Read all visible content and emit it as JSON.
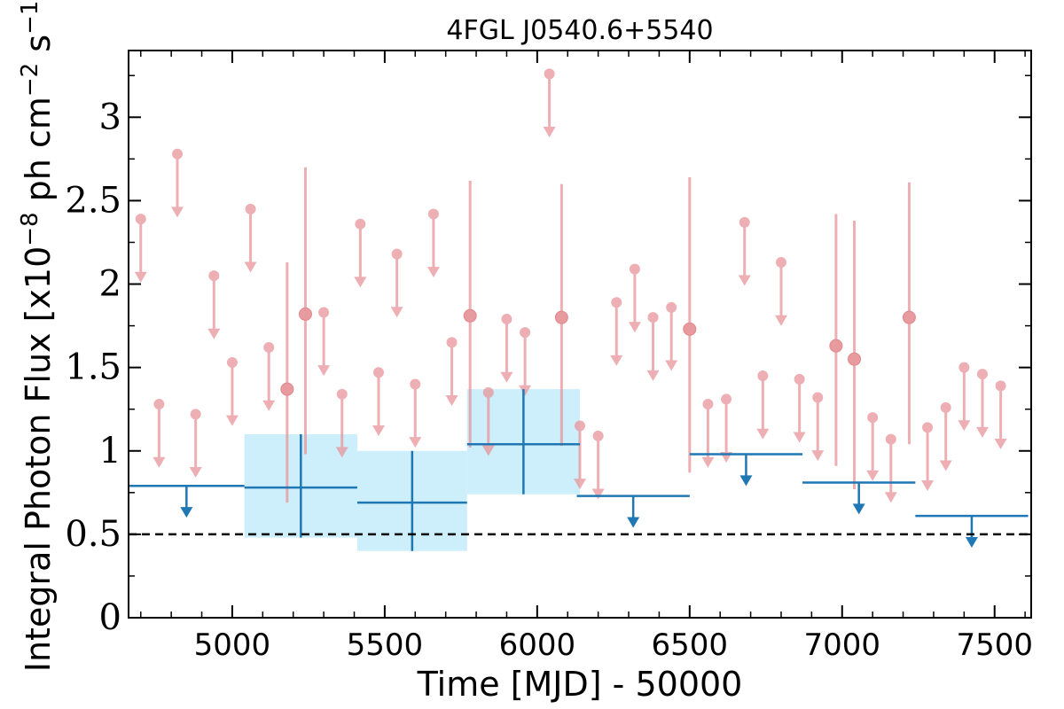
{
  "chart_data": {
    "type": "scatter",
    "title": "4FGL J0540.6+5540",
    "xlabel": "Time [MJD] - 50000",
    "ylabel": "Integral Photon Flux [x10^-8 ph cm^-2 s^-1]",
    "xlim": [
      4660,
      7620
    ],
    "ylim": [
      0,
      3.4
    ],
    "x_ticks": [
      5000,
      5500,
      6000,
      6500,
      7000,
      7500
    ],
    "x_tick_labels": [
      "5000",
      "5500",
      "6000",
      "6500",
      "7000",
      "7500"
    ],
    "y_ticks": [
      0,
      0.5,
      1,
      1.5,
      2,
      2.5,
      3
    ],
    "y_tick_labels": [
      "0",
      "0.5",
      "1",
      "1.5",
      "2",
      "2.5",
      "3"
    ],
    "reference_line": {
      "y": 0.5,
      "style": "dashed"
    },
    "grid": false,
    "series": [
      {
        "kind": "short-bin",
        "color": "#e8959a",
        "upper_limits": [
          {
            "x": 4700,
            "y": 2.39
          },
          {
            "x": 4760,
            "y": 1.28
          },
          {
            "x": 4820,
            "y": 2.78
          },
          {
            "x": 4880,
            "y": 1.22
          },
          {
            "x": 4940,
            "y": 2.05
          },
          {
            "x": 5000,
            "y": 1.53
          },
          {
            "x": 5060,
            "y": 2.45
          },
          {
            "x": 5120,
            "y": 1.62
          },
          {
            "x": 5300,
            "y": 1.83
          },
          {
            "x": 5360,
            "y": 1.34
          },
          {
            "x": 5420,
            "y": 2.36
          },
          {
            "x": 5480,
            "y": 1.47
          },
          {
            "x": 5540,
            "y": 2.18
          },
          {
            "x": 5600,
            "y": 1.4
          },
          {
            "x": 5660,
            "y": 2.42
          },
          {
            "x": 5720,
            "y": 1.65
          },
          {
            "x": 5840,
            "y": 1.35
          },
          {
            "x": 5900,
            "y": 1.79
          },
          {
            "x": 5960,
            "y": 1.71
          },
          {
            "x": 6040,
            "y": 3.26
          },
          {
            "x": 6140,
            "y": 1.15
          },
          {
            "x": 6200,
            "y": 1.09
          },
          {
            "x": 6260,
            "y": 1.89
          },
          {
            "x": 6320,
            "y": 2.09
          },
          {
            "x": 6380,
            "y": 1.8
          },
          {
            "x": 6440,
            "y": 1.86
          },
          {
            "x": 6560,
            "y": 1.28
          },
          {
            "x": 6620,
            "y": 1.31
          },
          {
            "x": 6680,
            "y": 2.37
          },
          {
            "x": 6740,
            "y": 1.45
          },
          {
            "x": 6800,
            "y": 2.13
          },
          {
            "x": 6860,
            "y": 1.43
          },
          {
            "x": 6920,
            "y": 1.32
          },
          {
            "x": 7100,
            "y": 1.2
          },
          {
            "x": 7160,
            "y": 1.07
          },
          {
            "x": 7280,
            "y": 1.14
          },
          {
            "x": 7340,
            "y": 1.26
          },
          {
            "x": 7400,
            "y": 1.5
          },
          {
            "x": 7460,
            "y": 1.46
          },
          {
            "x": 7520,
            "y": 1.39
          }
        ],
        "detections": [
          {
            "x": 5180,
            "y": 1.37,
            "ylo": 0.69,
            "yhi": 2.13
          },
          {
            "x": 5240,
            "y": 1.82,
            "ylo": 0.98,
            "yhi": 2.7
          },
          {
            "x": 5780,
            "y": 1.81,
            "ylo": 1.02,
            "yhi": 2.62
          },
          {
            "x": 6080,
            "y": 1.8,
            "ylo": 1.03,
            "yhi": 2.6
          },
          {
            "x": 6500,
            "y": 1.73,
            "ylo": 0.87,
            "yhi": 2.64
          },
          {
            "x": 6980,
            "y": 1.63,
            "ylo": 0.91,
            "yhi": 2.42
          },
          {
            "x": 7040,
            "y": 1.55,
            "ylo": 0.77,
            "yhi": 2.38
          },
          {
            "x": 7220,
            "y": 1.8,
            "ylo": 1.04,
            "yhi": 2.61
          }
        ]
      },
      {
        "kind": "long-bin",
        "color": "#1f77b4",
        "band_color": "#cdeefb",
        "upper_limits": [
          {
            "x0": 4660,
            "x1": 5040,
            "y": 0.79
          },
          {
            "x0": 6130,
            "x1": 6500,
            "y": 0.73
          },
          {
            "x0": 6500,
            "x1": 6870,
            "y": 0.98
          },
          {
            "x0": 6870,
            "x1": 7240,
            "y": 0.81
          },
          {
            "x0": 7240,
            "x1": 7610,
            "y": 0.61
          }
        ],
        "detections": [
          {
            "x0": 5040,
            "x1": 5410,
            "y": 0.78,
            "ylo": 0.48,
            "yhi": 1.1
          },
          {
            "x0": 5410,
            "x1": 5770,
            "y": 0.69,
            "ylo": 0.4,
            "yhi": 1.0
          },
          {
            "x0": 5770,
            "x1": 6140,
            "y": 1.04,
            "ylo": 0.74,
            "yhi": 1.37
          }
        ]
      }
    ]
  }
}
